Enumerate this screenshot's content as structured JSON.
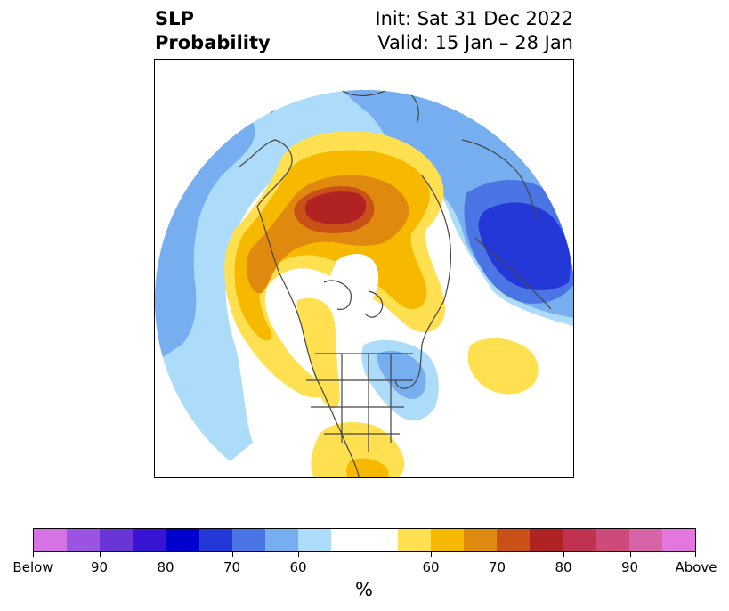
{
  "header": {
    "left_line1": "SLP",
    "left_line2": "Probability",
    "right_line1": "Init: Sat 31 Dec 2022",
    "right_line2": "Valid: 15 Jan – 28 Jan"
  },
  "map": {
    "projection": "north-polar-stereographic",
    "below_colors": [
      "#d671e6",
      "#9b53e1",
      "#6a35d7",
      "#3a14d4",
      "#0000cc",
      "#2438d8",
      "#4b74e4",
      "#76aef0",
      "#acdcfa"
    ],
    "neutral_color": "#ffffff",
    "above_colors": [
      "#ffe050",
      "#f7b800",
      "#e0890f",
      "#c95118",
      "#b12222",
      "#c03350",
      "#cd4a7a",
      "#d864a8",
      "#e477de"
    ]
  },
  "colorbar": {
    "colors": [
      "#d671e6",
      "#9b53e1",
      "#6a35d7",
      "#3a14d4",
      "#0000cc",
      "#2438d8",
      "#4b74e4",
      "#76aef0",
      "#acdcfa",
      "#ffffff",
      "#ffffff",
      "#ffe050",
      "#f7b800",
      "#e0890f",
      "#c95118",
      "#b12222",
      "#c03350",
      "#cd4a7a",
      "#d864a8",
      "#e477de"
    ],
    "ticks": [
      "Below",
      "90",
      "80",
      "70",
      "60",
      "60",
      "70",
      "80",
      "90",
      "Above"
    ],
    "tick_cells": [
      0,
      2,
      4,
      6,
      8,
      12,
      14,
      16,
      18,
      20
    ],
    "unit": "%"
  }
}
